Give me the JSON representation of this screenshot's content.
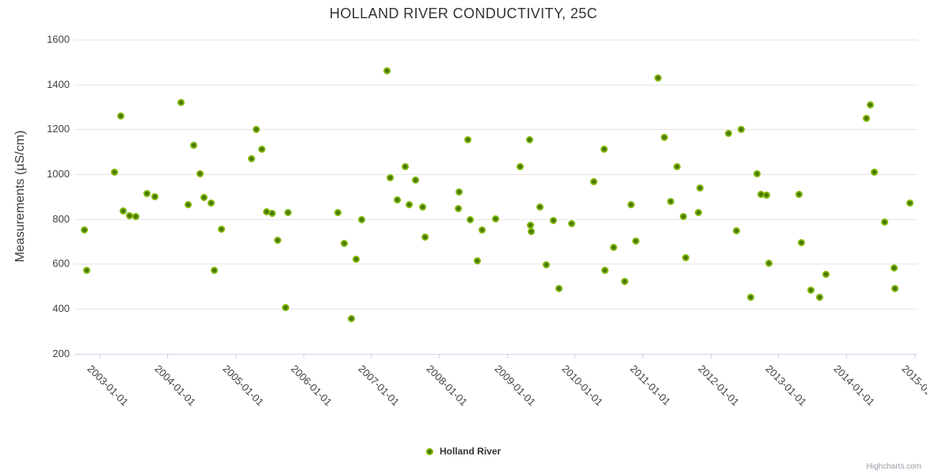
{
  "credits": "Highcharts.com",
  "colors": {
    "title": "#333333",
    "axis_labels": "#3f3f46",
    "grid": "#e6e6e6",
    "axis_line": "#ccd6eb",
    "marker_edge": "#7cb500",
    "marker_fill": "#4b7505"
  },
  "chart_data": {
    "type": "scatter",
    "title": "HOLLAND RIVER CONDUCTIVITY, 25C",
    "xlabel": "",
    "ylabel": "Measurements (µS/cm)",
    "ylim": [
      200,
      1600
    ],
    "ytick_values": [
      200,
      400,
      600,
      800,
      1000,
      1200,
      1400,
      1600
    ],
    "xtick_years": [
      2003,
      2004,
      2005,
      2006,
      2007,
      2008,
      2009,
      2010,
      2011,
      2012,
      2013,
      2014,
      2015
    ],
    "xtick_labels": [
      "2003-01-01",
      "2004-01-01",
      "2005-01-01",
      "2006-01-01",
      "2007-01-01",
      "2008-01-01",
      "2009-01-01",
      "2010-01-01",
      "2011-01-01",
      "2012-01-01",
      "2013-01-01",
      "2014-01-01",
      "2015-01-01"
    ],
    "x_range_years": [
      2002.63,
      2015.05
    ],
    "grid": true,
    "legend_position": "bottom-center",
    "series": [
      {
        "name": "Holland River",
        "points": [
          [
            2002.78,
            750
          ],
          [
            2002.81,
            570
          ],
          [
            2003.22,
            1010
          ],
          [
            2003.31,
            1260
          ],
          [
            2003.35,
            835
          ],
          [
            2003.44,
            815
          ],
          [
            2003.53,
            810
          ],
          [
            2003.7,
            915
          ],
          [
            2003.81,
            900
          ],
          [
            2004.2,
            1320
          ],
          [
            2004.3,
            865
          ],
          [
            2004.39,
            1130
          ],
          [
            2004.48,
            1000
          ],
          [
            2004.54,
            895
          ],
          [
            2004.64,
            870
          ],
          [
            2004.69,
            570
          ],
          [
            2004.8,
            755
          ],
          [
            2005.24,
            1070
          ],
          [
            2005.31,
            1200
          ],
          [
            2005.39,
            1110
          ],
          [
            2005.46,
            832
          ],
          [
            2005.54,
            825
          ],
          [
            2005.62,
            705
          ],
          [
            2005.74,
            405
          ],
          [
            2005.78,
            830
          ],
          [
            2006.51,
            830
          ],
          [
            2006.6,
            690
          ],
          [
            2006.71,
            355
          ],
          [
            2006.78,
            620
          ],
          [
            2006.86,
            798
          ],
          [
            2007.23,
            1460
          ],
          [
            2007.28,
            985
          ],
          [
            2007.39,
            885
          ],
          [
            2007.5,
            1033
          ],
          [
            2007.56,
            865
          ],
          [
            2007.66,
            975
          ],
          [
            2007.76,
            855
          ],
          [
            2007.8,
            720
          ],
          [
            2008.28,
            845
          ],
          [
            2008.3,
            920
          ],
          [
            2008.43,
            1153
          ],
          [
            2008.46,
            798
          ],
          [
            2008.57,
            613
          ],
          [
            2008.63,
            750
          ],
          [
            2008.83,
            800
          ],
          [
            2009.2,
            1032
          ],
          [
            2009.33,
            1153
          ],
          [
            2009.35,
            773
          ],
          [
            2009.36,
            744
          ],
          [
            2009.49,
            855
          ],
          [
            2009.58,
            595
          ],
          [
            2009.69,
            795
          ],
          [
            2009.77,
            490
          ],
          [
            2009.95,
            778
          ],
          [
            2010.28,
            965
          ],
          [
            2010.43,
            1110
          ],
          [
            2010.44,
            570
          ],
          [
            2010.57,
            673
          ],
          [
            2010.74,
            520
          ],
          [
            2010.83,
            865
          ],
          [
            2010.9,
            703
          ],
          [
            2011.23,
            1430
          ],
          [
            2011.32,
            1165
          ],
          [
            2011.41,
            878
          ],
          [
            2011.51,
            1032
          ],
          [
            2011.6,
            810
          ],
          [
            2011.64,
            628
          ],
          [
            2011.82,
            828
          ],
          [
            2011.84,
            938
          ],
          [
            2012.26,
            1182
          ],
          [
            2012.38,
            748
          ],
          [
            2012.45,
            1200
          ],
          [
            2012.59,
            450
          ],
          [
            2012.68,
            1000
          ],
          [
            2012.74,
            910
          ],
          [
            2012.83,
            905
          ],
          [
            2012.86,
            603
          ],
          [
            2013.3,
            910
          ],
          [
            2013.34,
            695
          ],
          [
            2013.48,
            483
          ],
          [
            2013.61,
            450
          ],
          [
            2013.7,
            555
          ],
          [
            2014.3,
            1250
          ],
          [
            2014.36,
            1310
          ],
          [
            2014.41,
            1010
          ],
          [
            2014.56,
            785
          ],
          [
            2014.71,
            583
          ],
          [
            2014.72,
            488
          ],
          [
            2014.94,
            870
          ]
        ]
      }
    ]
  }
}
